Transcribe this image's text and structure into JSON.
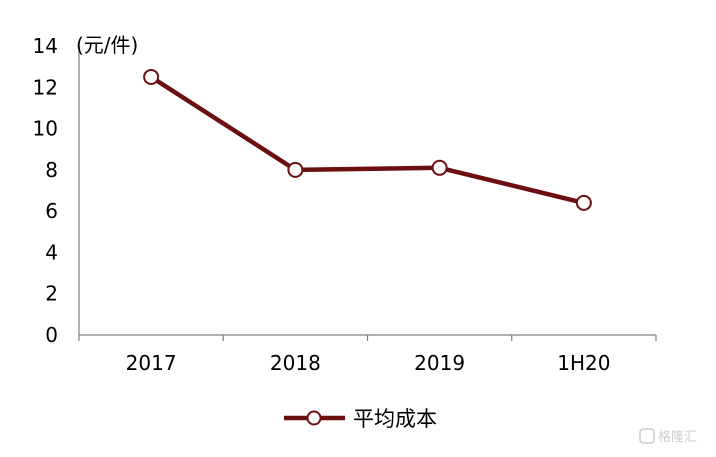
{
  "chart_data": {
    "type": "line",
    "unit_label": "(元/件)",
    "categories": [
      "2017",
      "2018",
      "2019",
      "1H20"
    ],
    "series": [
      {
        "name": "平均成本",
        "values": [
          12.5,
          8.0,
          8.1,
          6.4
        ],
        "color": "#6b0f10"
      }
    ],
    "y_ticks": [
      "0",
      "2",
      "4",
      "6",
      "8",
      "10",
      "12",
      "14"
    ],
    "ylim": [
      0,
      14
    ],
    "grid": false,
    "legend_position": "bottom-center",
    "marker": "hollow-circle"
  },
  "watermark": {
    "text": "格隆汇"
  }
}
